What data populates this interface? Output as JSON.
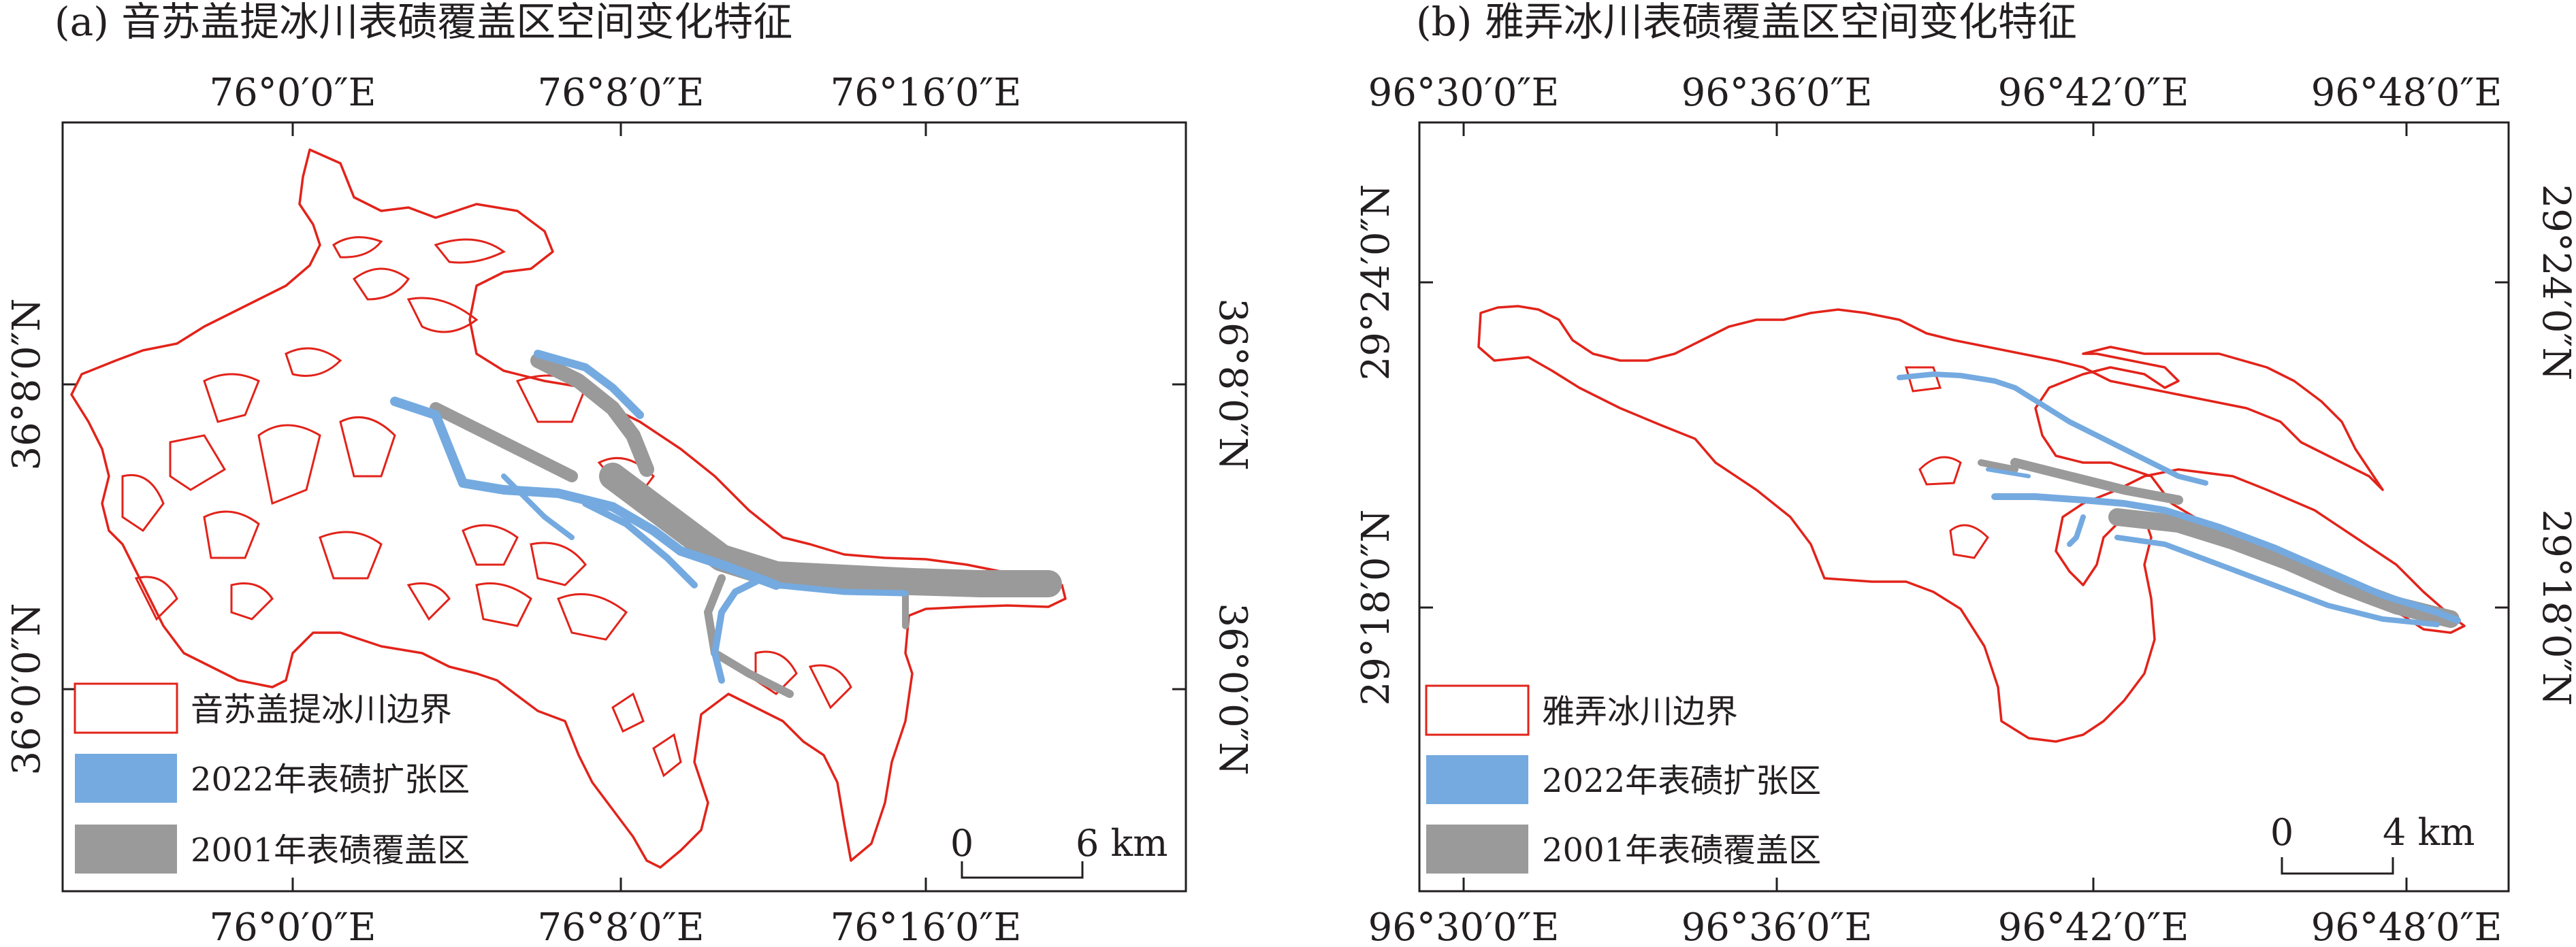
{
  "colors": {
    "boundary": "#e2231a",
    "expansion": "#74aae0",
    "coverage_2001": "#9a9a9a",
    "frame": "#231f20"
  },
  "panel_a": {
    "title": "(a) 音苏盖提冰川表碛覆盖区空间变化特征",
    "lon_labels": [
      "76°0′0″E",
      "76°8′0″E",
      "76°16′0″E"
    ],
    "lat_labels": [
      "36°8′0″N",
      "36°0′0″N"
    ],
    "legend": {
      "boundary": "音苏盖提冰川边界",
      "expansion": "2022年表碛扩张区",
      "coverage": "2001年表碛覆盖区"
    },
    "scale": {
      "start": "0",
      "end": "6 km"
    }
  },
  "panel_b": {
    "title": "(b) 雅弄冰川表碛覆盖区空间变化特征",
    "lon_labels": [
      "96°30′0″E",
      "96°36′0″E",
      "96°42′0″E",
      "96°48′0″E"
    ],
    "lat_labels": [
      "29°24′0″N",
      "29°18′0″N"
    ],
    "legend": {
      "boundary": "雅弄冰川边界",
      "expansion": "2022年表碛扩张区",
      "coverage": "2001年表碛覆盖区"
    },
    "scale": {
      "start": "0",
      "end": "4 km"
    }
  }
}
